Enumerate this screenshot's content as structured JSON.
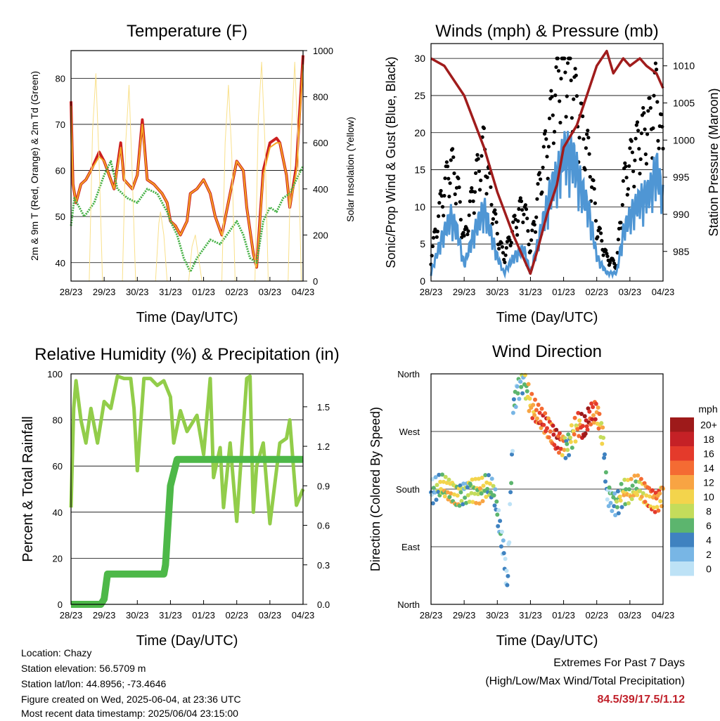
{
  "chart_data": [
    {
      "type": "line",
      "title": "Temperature (F)",
      "xlabel": "Time (Day/UTC)",
      "ylabel": "2m & 9m T (Red, Orange) & 2m Td (Green)",
      "ylabel_right": "Solar Insolation (Yellow)",
      "x_ticks": [
        "28/23",
        "29/23",
        "30/23",
        "31/23",
        "01/23",
        "02/23",
        "03/23",
        "04/23"
      ],
      "ylim": [
        36,
        86
      ],
      "y_ticks": [
        40,
        50,
        60,
        70,
        80
      ],
      "ylim_right": [
        0,
        1000
      ],
      "y_ticks_right": [
        0,
        200,
        400,
        600,
        800,
        1000
      ],
      "x_unit": "days since 28/23",
      "series": [
        {
          "name": "2m T",
          "color": "#cc1f1f",
          "x": [
            0,
            0.06,
            0.15,
            0.3,
            0.45,
            0.6,
            0.85,
            1.0,
            1.15,
            1.3,
            1.5,
            1.6,
            1.85,
            2.0,
            2.15,
            2.3,
            2.5,
            2.75,
            2.9,
            3.0,
            3.15,
            3.3,
            3.5,
            3.6,
            3.8,
            4.0,
            4.2,
            4.35,
            4.5,
            4.55,
            4.8,
            5.0,
            5.2,
            5.3,
            5.5,
            5.6,
            5.8,
            6.0,
            6.2,
            6.3,
            6.5,
            6.6,
            6.8,
            7.0
          ],
          "y": [
            75,
            57,
            53,
            57,
            58,
            60,
            64,
            62,
            59,
            56,
            66,
            58,
            56,
            59,
            71,
            58,
            57,
            55,
            53,
            49,
            48,
            46,
            49,
            55,
            56,
            58,
            55,
            50,
            47,
            46,
            55,
            62,
            60,
            52,
            42,
            39,
            60,
            66,
            67,
            66,
            59,
            52,
            61,
            85
          ]
        },
        {
          "name": "9m T",
          "color": "#f5a623",
          "x": [
            0,
            0.06,
            0.15,
            0.3,
            0.45,
            0.6,
            0.85,
            1.0,
            1.15,
            1.3,
            1.5,
            1.6,
            1.85,
            2.0,
            2.15,
            2.3,
            2.5,
            2.75,
            2.9,
            3.0,
            3.15,
            3.3,
            3.5,
            3.6,
            3.8,
            4.0,
            4.2,
            4.35,
            4.5,
            4.55,
            4.8,
            5.0,
            5.2,
            5.3,
            5.5,
            5.6,
            5.8,
            6.0,
            6.2,
            6.3,
            6.5,
            6.6,
            6.8,
            7.0
          ],
          "y": [
            74,
            57,
            53,
            57,
            58,
            60,
            63,
            62,
            59,
            56,
            65,
            58,
            56,
            59,
            70,
            58,
            57,
            55,
            53,
            49,
            48,
            46,
            49,
            55,
            56,
            58,
            55,
            50,
            47,
            46,
            55,
            62,
            60,
            52,
            42,
            39,
            59,
            65,
            66,
            66,
            59,
            52,
            60,
            83
          ]
        },
        {
          "name": "2m Td",
          "color": "#43b043",
          "x": [
            0,
            0.1,
            0.4,
            0.7,
            1.0,
            1.2,
            1.4,
            1.7,
            2.0,
            2.3,
            2.6,
            2.9,
            3.0,
            3.2,
            3.4,
            3.6,
            3.8,
            4.0,
            4.2,
            4.5,
            4.8,
            5.0,
            5.2,
            5.4,
            5.6,
            5.8,
            6.0,
            6.2,
            6.4,
            6.6,
            6.8,
            7.0
          ],
          "y": [
            48,
            54,
            50,
            53,
            59,
            62,
            56,
            54,
            53,
            56,
            55,
            51,
            49,
            46,
            41,
            38,
            41,
            43,
            45,
            44,
            47,
            49,
            46,
            41,
            40,
            49,
            52,
            51,
            54,
            55,
            58,
            61
          ]
        },
        {
          "name": "Solar Insolation",
          "color": "#f9e08a",
          "axis": "right",
          "x": [
            0.55,
            0.65,
            0.75,
            0.85,
            0.95,
            1.55,
            1.65,
            1.75,
            1.85,
            1.95,
            2.55,
            2.65,
            2.7,
            2.8,
            2.9,
            3.55,
            3.65,
            3.75,
            3.85,
            3.95,
            4.55,
            4.65,
            4.75,
            4.85,
            4.95,
            5.55,
            5.65,
            5.75,
            5.85,
            5.95,
            6.55,
            6.65,
            6.75,
            6.85,
            6.95
          ],
          "y": [
            0,
            650,
            900,
            500,
            0,
            0,
            600,
            850,
            450,
            0,
            0,
            250,
            300,
            200,
            0,
            0,
            150,
            200,
            100,
            0,
            0,
            600,
            850,
            550,
            0,
            0,
            700,
            950,
            600,
            0,
            0,
            650,
            950,
            600,
            0
          ]
        }
      ]
    },
    {
      "type": "scatter",
      "title": "Winds (mph) & Pressure (mb)",
      "xlabel": "Time (Day/UTC)",
      "ylabel": "Sonic/Prop Wind & Gust (Blue, Black)",
      "ylabel_right": "Station Pressure (Maroon)",
      "x_ticks": [
        "28/23",
        "29/23",
        "30/23",
        "31/23",
        "01/23",
        "02/23",
        "03/23",
        "04/23"
      ],
      "ylim": [
        0,
        32
      ],
      "y_ticks": [
        0,
        5,
        10,
        15,
        20,
        25,
        30
      ],
      "ylim_right": [
        981,
        1013
      ],
      "y_ticks_right": [
        985,
        990,
        995,
        1000,
        1005,
        1010
      ],
      "x_unit": "days since 28/23",
      "series": [
        {
          "name": "Wind",
          "color": "#4f96d4",
          "x": [
            0,
            0.3,
            0.6,
            0.8,
            1.0,
            1.3,
            1.6,
            1.8,
            2.0,
            2.2,
            2.5,
            2.8,
            3.0,
            3.3,
            3.6,
            3.9,
            4.0,
            4.3,
            4.5,
            4.8,
            5.0,
            5.3,
            5.6,
            5.8,
            6.0,
            6.3,
            6.6,
            6.8,
            7.0
          ],
          "y": [
            1,
            5,
            8,
            6,
            2,
            6,
            9,
            6,
            3,
            1,
            3,
            4,
            1,
            6,
            11,
            14,
            16,
            15,
            12,
            8,
            3,
            1,
            1,
            6,
            8,
            10,
            11,
            14,
            10
          ]
        },
        {
          "name": "Gust",
          "color": "#000000",
          "x": [
            0,
            0.3,
            0.6,
            0.8,
            1.0,
            1.3,
            1.6,
            1.8,
            2.0,
            2.2,
            2.5,
            2.8,
            3.0,
            3.3,
            3.6,
            3.9,
            4.0,
            4.3,
            4.5,
            4.8,
            5.0,
            5.3,
            5.6,
            5.8,
            6.0,
            6.3,
            6.6,
            6.8,
            7.0
          ],
          "y": [
            3,
            10,
            15,
            12,
            5,
            12,
            17,
            11,
            6,
            3,
            7,
            10,
            4,
            13,
            20,
            27,
            29,
            24,
            20,
            15,
            7,
            3,
            2,
            12,
            15,
            18,
            20,
            24,
            16
          ]
        },
        {
          "name": "Pressure",
          "color": "#a01c1c",
          "axis": "right",
          "x": [
            0,
            0.4,
            1.0,
            1.6,
            2.0,
            2.5,
            2.9,
            3.0,
            3.2,
            3.5,
            3.8,
            4.0,
            4.4,
            4.7,
            5.0,
            5.3,
            5.5,
            5.8,
            6.0,
            6.3,
            6.5,
            6.8,
            7.0
          ],
          "y": [
            1011,
            1010,
            1006,
            999,
            993,
            987,
            983,
            982,
            985,
            990,
            994,
            999,
            1002,
            1006,
            1010,
            1012,
            1009,
            1011,
            1010,
            1011,
            1010,
            1009,
            1007
          ]
        }
      ]
    },
    {
      "type": "line",
      "title": "Relative Humidity (%) & Precipitation (in)",
      "xlabel": "Time (Day/UTC)",
      "ylabel": "Percent & Total Rainfall",
      "x_ticks": [
        "28/23",
        "29/23",
        "30/23",
        "31/23",
        "01/23",
        "02/23",
        "03/23",
        "04/23"
      ],
      "ylim": [
        0,
        100
      ],
      "y_ticks": [
        0,
        20,
        40,
        60,
        80,
        100
      ],
      "ylim_right": [
        0,
        1.75
      ],
      "y_ticks_right": [
        0.0,
        0.3,
        0.6,
        0.9,
        1.2,
        1.5
      ],
      "x_unit": "days since 28/23",
      "series": [
        {
          "name": "RH",
          "color": "#92cd4a",
          "x": [
            0,
            0.08,
            0.15,
            0.3,
            0.45,
            0.6,
            0.8,
            1.0,
            1.2,
            1.4,
            1.6,
            1.8,
            1.9,
            2.0,
            2.2,
            2.4,
            2.6,
            2.8,
            3.0,
            3.1,
            3.3,
            3.5,
            3.8,
            4.0,
            4.2,
            4.3,
            4.5,
            4.6,
            4.8,
            5.0,
            5.3,
            5.4,
            5.5,
            5.6,
            5.8,
            6.0,
            6.3,
            6.5,
            6.6,
            6.8,
            7.0
          ],
          "y": [
            42,
            85,
            97,
            80,
            70,
            85,
            70,
            88,
            85,
            99,
            98,
            98,
            85,
            58,
            98,
            98,
            95,
            97,
            90,
            70,
            84,
            75,
            82,
            65,
            98,
            55,
            68,
            42,
            70,
            36,
            98,
            99,
            40,
            60,
            70,
            35,
            70,
            72,
            80,
            43,
            50
          ]
        },
        {
          "name": "Total Rainfall",
          "color": "#4db848",
          "x": [
            0,
            0.9,
            1.0,
            1.1,
            2.8,
            2.85,
            2.9,
            3.0,
            3.2,
            3.3,
            7.0
          ],
          "y": [
            0,
            0,
            0.04,
            0.23,
            0.23,
            0.3,
            0.5,
            0.9,
            1.1,
            1.1,
            1.1
          ]
        }
      ]
    },
    {
      "type": "scatter",
      "title": "Wind Direction",
      "xlabel": "Time (Day/UTC)",
      "ylabel": "Direction (Colored By Speed)",
      "x_ticks": [
        "28/23",
        "29/23",
        "30/23",
        "31/23",
        "01/23",
        "02/23",
        "03/23",
        "04/23"
      ],
      "y_tick_labels": [
        "North",
        "East",
        "South",
        "West",
        "North"
      ],
      "ylim": [
        0,
        360
      ],
      "legend_title": "mph",
      "legend_labels": [
        "20+",
        "18",
        "16",
        "14",
        "12",
        "10",
        "8",
        "6",
        "4",
        "2",
        "0"
      ],
      "legend_colors": [
        "#9e1a1a",
        "#c52126",
        "#e43a2b",
        "#f46b33",
        "#f8a443",
        "#f3d44c",
        "#c4dc5b",
        "#5cb56e",
        "#3f82c0",
        "#78b6e5",
        "#bde2f6"
      ],
      "x_unit": "days since 28/23",
      "series": [
        {
          "name": "Direction",
          "x": [
            0.1,
            0.3,
            0.5,
            0.8,
            1.0,
            1.2,
            1.5,
            1.7,
            1.9,
            2.2,
            2.3,
            2.5,
            2.6,
            2.8,
            3.0,
            3.2,
            3.4,
            3.6,
            3.8,
            4.0,
            4.1,
            4.3,
            4.5,
            4.6,
            4.8,
            5.0,
            5.2,
            5.3,
            5.6,
            5.8,
            6.0,
            6.2,
            6.5,
            6.8,
            7.0
          ],
          "y": [
            175,
            180,
            175,
            170,
            180,
            185,
            175,
            180,
            170,
            80,
            30,
            320,
            340,
            355,
            310,
            290,
            280,
            270,
            260,
            255,
            250,
            270,
            280,
            265,
            290,
            300,
            260,
            180,
            160,
            175,
            170,
            180,
            170,
            165,
            180
          ],
          "speed": [
            3,
            8,
            10,
            9,
            4,
            8,
            10,
            7,
            5,
            2,
            1,
            4,
            3,
            5,
            12,
            14,
            16,
            13,
            18,
            12,
            4,
            10,
            14,
            20,
            16,
            14,
            8,
            2,
            5,
            8,
            10,
            9,
            12,
            14,
            10
          ]
        }
      ]
    }
  ],
  "info": {
    "location": "Location: Chazy",
    "elevation": "Station elevation: 56.5709 m",
    "latlon": "Station lat/lon: 44.8956; -73.4646",
    "created": "Figure created on Wed, 2025-06-04, at 23:36 UTC",
    "latest": "Most recent data timestamp: 2025/06/04 23:15:00"
  },
  "extremes": {
    "heading": "Extremes For Past 7 Days",
    "subheading": "(High/Low/Max Wind/Total Precipitation)",
    "values": "84.5/39/17.5/1.12",
    "values_color": "#c0202a"
  }
}
